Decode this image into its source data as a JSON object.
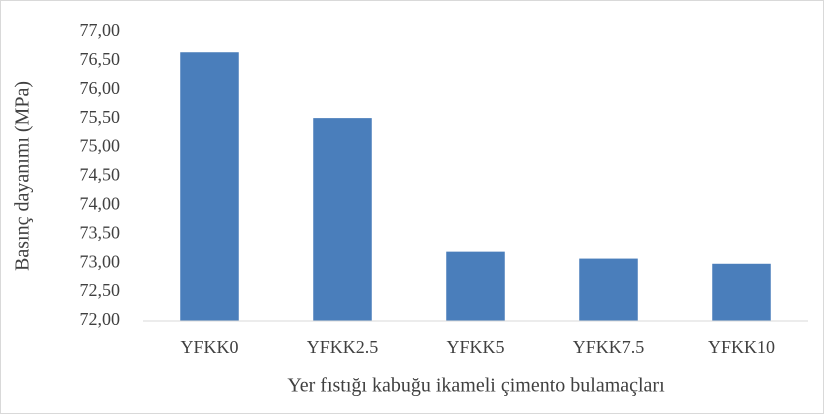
{
  "chart_data": {
    "type": "bar",
    "x_label": "Yer fıstığı kabuğu ikameli çimento bulamaçları",
    "y_label": "Basınç dayanımı (MPa)",
    "categories": [
      "YFKK0",
      "YFKK2.5",
      "YFKK5",
      "YFKK7.5",
      "YFKK10"
    ],
    "values": [
      76.65,
      75.51,
      73.2,
      73.08,
      72.99
    ],
    "color": "#4a7ebb",
    "ylim": [
      72,
      77
    ],
    "yticks": [
      {
        "value": 72,
        "label": "72,00"
      },
      {
        "value": 72.5,
        "label": "72,50"
      },
      {
        "value": 73,
        "label": "73,00"
      },
      {
        "value": 73.5,
        "label": "73,50"
      },
      {
        "value": 74,
        "label": "74,00"
      },
      {
        "value": 74.5,
        "label": "74,50"
      },
      {
        "value": 75,
        "label": "75,00"
      },
      {
        "value": 75.5,
        "label": "75,50"
      },
      {
        "value": 76,
        "label": "76,00"
      },
      {
        "value": 76.5,
        "label": "76,50"
      },
      {
        "value": 77,
        "label": "77,00"
      }
    ],
    "grid": false
  }
}
